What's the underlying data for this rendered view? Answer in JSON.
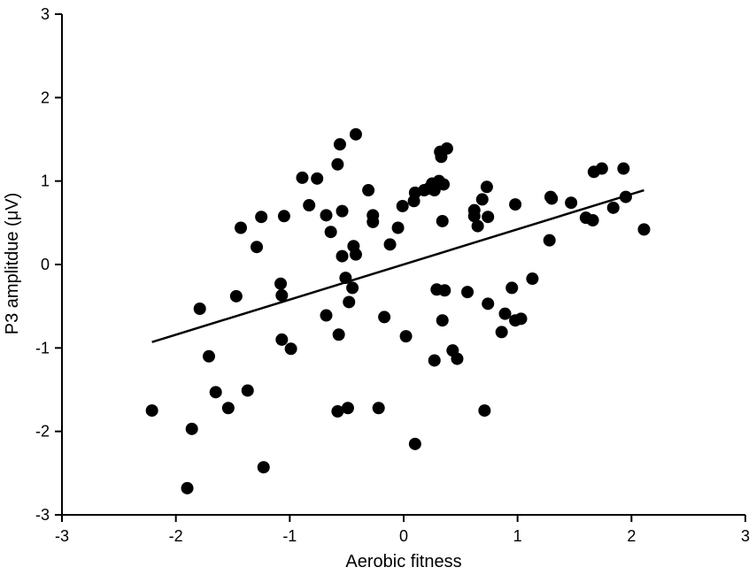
{
  "chart_data": {
    "type": "scatter",
    "title": "",
    "xlabel": "Aerobic fitness",
    "ylabel": "P3 amplitdue (μV)",
    "xlim": [
      -3,
      3
    ],
    "ylim": [
      -3,
      3
    ],
    "xticks": [
      "-3",
      "-2",
      "-1",
      "0",
      "1",
      "2",
      "3"
    ],
    "yticks": [
      "-3",
      "-2",
      "-1",
      "0",
      "1",
      "2",
      "3"
    ],
    "grid": false,
    "legend": "none",
    "marker_color": "#000000",
    "points": [
      {
        "x": -2.21,
        "y": -1.75
      },
      {
        "x": -1.86,
        "y": -1.97
      },
      {
        "x": -1.9,
        "y": -2.68
      },
      {
        "x": -1.79,
        "y": -0.53
      },
      {
        "x": -1.71,
        "y": -1.1
      },
      {
        "x": -1.65,
        "y": -1.53
      },
      {
        "x": -1.54,
        "y": -1.72
      },
      {
        "x": -1.47,
        "y": -0.38
      },
      {
        "x": -1.43,
        "y": 0.44
      },
      {
        "x": -1.37,
        "y": -1.51
      },
      {
        "x": -1.29,
        "y": 0.21
      },
      {
        "x": -1.25,
        "y": 0.57
      },
      {
        "x": -1.23,
        "y": -2.43
      },
      {
        "x": -1.08,
        "y": -0.23
      },
      {
        "x": -1.07,
        "y": -0.37
      },
      {
        "x": -1.07,
        "y": -0.9
      },
      {
        "x": -1.05,
        "y": 0.58
      },
      {
        "x": -0.99,
        "y": -1.01
      },
      {
        "x": -0.89,
        "y": 1.04
      },
      {
        "x": -0.83,
        "y": 0.71
      },
      {
        "x": -0.76,
        "y": 1.03
      },
      {
        "x": -0.68,
        "y": 0.59
      },
      {
        "x": -0.68,
        "y": -0.61
      },
      {
        "x": -0.64,
        "y": 0.39
      },
      {
        "x": -0.58,
        "y": 1.2
      },
      {
        "x": -0.57,
        "y": -0.84
      },
      {
        "x": -0.58,
        "y": -1.76
      },
      {
        "x": -0.56,
        "y": 1.44
      },
      {
        "x": -0.54,
        "y": 0.64
      },
      {
        "x": -0.54,
        "y": 0.1
      },
      {
        "x": -0.51,
        "y": -0.16
      },
      {
        "x": -0.49,
        "y": -1.72
      },
      {
        "x": -0.48,
        "y": -0.45
      },
      {
        "x": -0.45,
        "y": -0.28
      },
      {
        "x": -0.44,
        "y": 0.22
      },
      {
        "x": -0.42,
        "y": 0.12
      },
      {
        "x": -0.42,
        "y": 1.56
      },
      {
        "x": -0.31,
        "y": 0.89
      },
      {
        "x": -0.27,
        "y": 0.51
      },
      {
        "x": -0.27,
        "y": 0.59
      },
      {
        "x": -0.22,
        "y": -1.72
      },
      {
        "x": -0.17,
        "y": -0.63
      },
      {
        "x": -0.12,
        "y": 0.24
      },
      {
        "x": -0.05,
        "y": 0.44
      },
      {
        "x": -0.01,
        "y": 0.7
      },
      {
        "x": 0.02,
        "y": -0.86
      },
      {
        "x": 0.09,
        "y": 0.76
      },
      {
        "x": 0.1,
        "y": 0.86
      },
      {
        "x": 0.1,
        "y": -2.15
      },
      {
        "x": 0.18,
        "y": 0.89
      },
      {
        "x": 0.22,
        "y": 0.91
      },
      {
        "x": 0.25,
        "y": 0.97
      },
      {
        "x": 0.27,
        "y": 0.89
      },
      {
        "x": 0.27,
        "y": -1.15
      },
      {
        "x": 0.29,
        "y": -0.3
      },
      {
        "x": 0.31,
        "y": 1.0
      },
      {
        "x": 0.32,
        "y": 1.35
      },
      {
        "x": 0.33,
        "y": 1.29
      },
      {
        "x": 0.34,
        "y": 0.52
      },
      {
        "x": 0.34,
        "y": -0.67
      },
      {
        "x": 0.35,
        "y": 0.96
      },
      {
        "x": 0.36,
        "y": -0.31
      },
      {
        "x": 0.38,
        "y": 1.39
      },
      {
        "x": 0.43,
        "y": -1.03
      },
      {
        "x": 0.47,
        "y": -1.13
      },
      {
        "x": 0.56,
        "y": -0.33
      },
      {
        "x": 0.62,
        "y": 0.65
      },
      {
        "x": 0.62,
        "y": 0.58
      },
      {
        "x": 0.65,
        "y": 0.46
      },
      {
        "x": 0.69,
        "y": 0.78
      },
      {
        "x": 0.71,
        "y": -1.75
      },
      {
        "x": 0.73,
        "y": 0.93
      },
      {
        "x": 0.74,
        "y": 0.57
      },
      {
        "x": 0.74,
        "y": -0.47
      },
      {
        "x": 0.86,
        "y": -0.81
      },
      {
        "x": 0.89,
        "y": -0.59
      },
      {
        "x": 0.95,
        "y": -0.28
      },
      {
        "x": 0.98,
        "y": -0.67
      },
      {
        "x": 0.98,
        "y": 0.72
      },
      {
        "x": 1.03,
        "y": -0.65
      },
      {
        "x": 1.13,
        "y": -0.17
      },
      {
        "x": 1.28,
        "y": 0.29
      },
      {
        "x": 1.29,
        "y": 0.81
      },
      {
        "x": 1.3,
        "y": 0.79
      },
      {
        "x": 1.47,
        "y": 0.74
      },
      {
        "x": 1.6,
        "y": 0.56
      },
      {
        "x": 1.66,
        "y": 0.53
      },
      {
        "x": 1.67,
        "y": 1.11
      },
      {
        "x": 1.74,
        "y": 1.15
      },
      {
        "x": 1.84,
        "y": 0.68
      },
      {
        "x": 1.93,
        "y": 1.15
      },
      {
        "x": 1.95,
        "y": 0.81
      },
      {
        "x": 2.11,
        "y": 0.42
      }
    ],
    "fit_line": {
      "x1": -2.21,
      "y1": -0.93,
      "x2": 2.11,
      "y2": 0.89
    }
  }
}
